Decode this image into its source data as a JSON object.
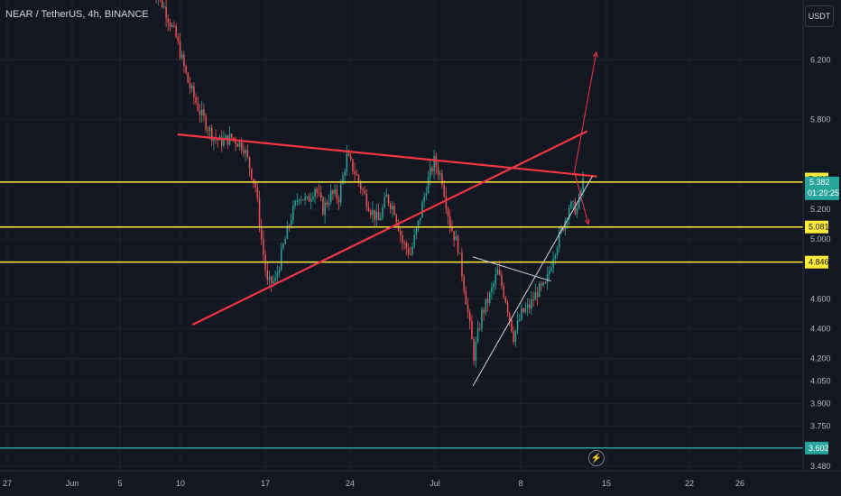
{
  "ticker_label": "NEAR / TetherUS, 4h, BINANCE",
  "unit_button": "USDT",
  "colors": {
    "bg": "#131722",
    "grid": "#1e222d",
    "up": "#26a69a",
    "down": "#ef5350",
    "trend_red": "#f23645",
    "level_yellow": "#ffeb3b",
    "level_teal": "#26a69a",
    "guide_white": "#d1d4dc"
  },
  "icons": {
    "replay": "lightning-icon"
  },
  "chart_data": {
    "type": "candlestick",
    "x_tick_labels": [
      "27",
      "Jun",
      "5",
      "10",
      "17",
      "24",
      "Jul",
      "8",
      "15",
      "22",
      "26"
    ],
    "y_tick_labels": [
      "6.200",
      "5.800",
      "5.200",
      "5.000",
      "4.600",
      "4.400",
      "4.200",
      "4.050",
      "3.900",
      "3.750",
      "3.480"
    ],
    "y_ticks": [
      6.2,
      5.8,
      5.2,
      5.0,
      4.6,
      4.4,
      4.2,
      4.05,
      3.9,
      3.75,
      3.48
    ],
    "ylim": [
      3.45,
      6.6
    ],
    "price_levels": [
      {
        "label": "5.382",
        "value": 5.382,
        "color": "#ffeb3b"
      },
      {
        "label": "5.081",
        "value": 5.081,
        "color": "#ffeb3b"
      },
      {
        "label": "4.846",
        "value": 4.846,
        "color": "#ffeb3b"
      },
      {
        "label": "3.602",
        "value": 3.602,
        "color": "#26a69a"
      }
    ],
    "price_tags": [
      {
        "label": "5.402",
        "value": 5.402,
        "style": "yellow"
      },
      {
        "label": "5.382",
        "value": 5.382,
        "style": "current"
      },
      {
        "label": "5.081",
        "value": 5.081,
        "style": "yellow"
      },
      {
        "label": "4.846",
        "value": 4.846,
        "style": "yellow"
      },
      {
        "label": "3.602",
        "value": 3.602,
        "style": "teal"
      }
    ],
    "countdown": "01:29:25",
    "candle_path": [
      [
        0,
        6.7
      ],
      [
        6,
        6.55
      ],
      [
        12,
        6.35
      ],
      [
        18,
        6.05
      ],
      [
        24,
        5.85
      ],
      [
        30,
        5.7
      ],
      [
        34,
        5.65
      ],
      [
        40,
        5.68
      ],
      [
        46,
        5.62
      ],
      [
        52,
        5.35
      ],
      [
        55,
        5.0
      ],
      [
        58,
        4.7
      ],
      [
        62,
        4.72
      ],
      [
        66,
        4.95
      ],
      [
        70,
        5.15
      ],
      [
        74,
        5.3
      ],
      [
        78,
        5.25
      ],
      [
        82,
        5.35
      ],
      [
        86,
        5.2
      ],
      [
        90,
        5.3
      ],
      [
        94,
        5.28
      ],
      [
        98,
        5.55
      ],
      [
        102,
        5.45
      ],
      [
        106,
        5.32
      ],
      [
        110,
        5.2
      ],
      [
        114,
        5.12
      ],
      [
        118,
        5.28
      ],
      [
        122,
        5.2
      ],
      [
        126,
        4.98
      ],
      [
        130,
        4.9
      ],
      [
        134,
        5.1
      ],
      [
        138,
        5.35
      ],
      [
        142,
        5.52
      ],
      [
        146,
        5.4
      ],
      [
        150,
        5.1
      ],
      [
        154,
        4.95
      ],
      [
        158,
        4.6
      ],
      [
        162,
        4.22
      ],
      [
        166,
        4.5
      ],
      [
        170,
        4.62
      ],
      [
        174,
        4.78
      ],
      [
        178,
        4.6
      ],
      [
        182,
        4.35
      ],
      [
        186,
        4.5
      ],
      [
        190,
        4.55
      ],
      [
        194,
        4.65
      ],
      [
        198,
        4.68
      ],
      [
        202,
        4.9
      ],
      [
        206,
        5.05
      ],
      [
        210,
        5.22
      ],
      [
        214,
        5.2
      ],
      [
        217,
        5.38
      ]
    ],
    "drawings": {
      "red_upper_trend": [
        [
          13.5,
          5.7
        ],
        [
          224,
          5.42
        ]
      ],
      "red_lower_trend": [
        [
          21,
          4.43
        ],
        [
          219,
          5.72
        ]
      ],
      "white_support": [
        [
          162,
          4.02
        ],
        [
          222,
          5.42
        ]
      ],
      "white_wedge_top": [
        [
          162,
          4.88
        ],
        [
          201,
          4.72
        ]
      ],
      "red_arrow_up": [
        [
          213,
          5.45
        ],
        [
          224,
          6.25
        ]
      ],
      "red_arrow_down": [
        [
          213,
          5.45
        ],
        [
          220,
          5.1
        ]
      ]
    }
  }
}
